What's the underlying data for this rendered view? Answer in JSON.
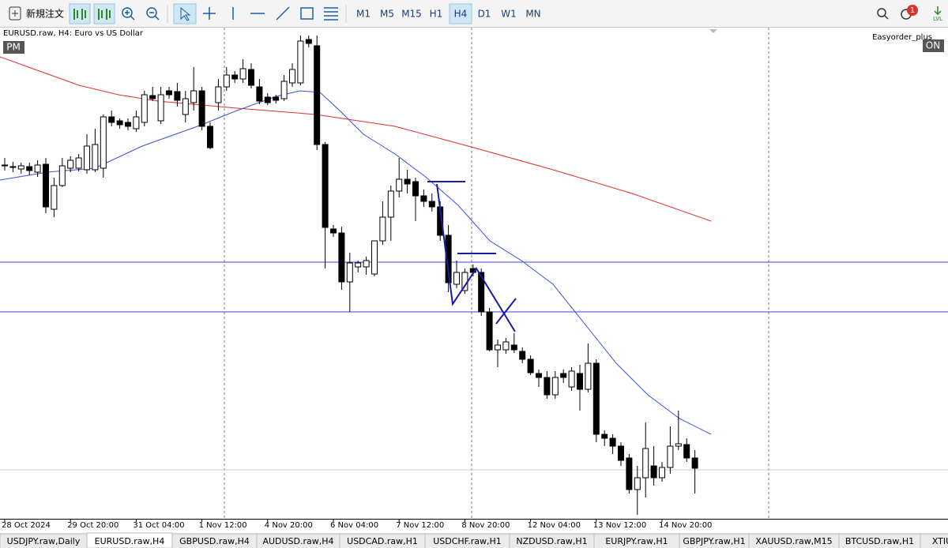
{
  "toolbar": {
    "new_order": "新規注文",
    "timeframes": [
      "M1",
      "M5",
      "M15",
      "H1",
      "H4",
      "D1",
      "W1",
      "MN"
    ],
    "active_timeframe": "H4",
    "notification_count": "1",
    "level_icon": "LVL"
  },
  "chart_data": {
    "type": "candlestick",
    "title": "EURUSD.raw, H4:  Euro vs US Dollar",
    "session_label": "PM",
    "expert_name": "Easyorder_plus",
    "expert_state": "ON",
    "categories": [
      "28 Oct 2024",
      null,
      null,
      null,
      null,
      null,
      null,
      null,
      "29 Oct 20:00",
      null,
      null,
      null,
      null,
      null,
      null,
      null,
      "31 Oct 04:00",
      null,
      null,
      null,
      null,
      null,
      null,
      null,
      "1 Nov 12:00",
      null,
      null,
      null,
      null,
      null,
      null,
      null,
      "4 Nov 20:00",
      null,
      null,
      null,
      null,
      null,
      null,
      null,
      "6 Nov 04:00",
      null,
      null,
      null,
      null,
      null,
      null,
      null,
      "7 Nov 12:00",
      null,
      null,
      null,
      null,
      null,
      null,
      null,
      "8 Nov 20:00",
      null,
      null,
      null,
      null,
      null,
      null,
      null,
      "12 Nov 04:00",
      null,
      null,
      null,
      null,
      null,
      null,
      null,
      "13 Nov 12:00",
      null,
      null,
      null,
      null,
      null,
      null,
      null,
      "14 Nov 20:00",
      null,
      null,
      null,
      null
    ],
    "open": [
      1.08215,
      1.08201,
      1.08187,
      1.08208,
      1.08159,
      1.08229,
      1.0783,
      1.0804,
      1.08194,
      1.08194,
      1.0818,
      1.0818,
      1.08194,
      1.08649,
      1.08614,
      1.086,
      1.08544,
      1.086,
      1.08838,
      1.08614,
      1.0888,
      1.08873,
      1.0867,
      1.08775,
      1.0888,
      1.08565,
      1.08775,
      1.08915,
      1.0902,
      1.08985,
      1.09069,
      1.08915,
      1.08824,
      1.08824,
      1.0881,
      1.0895,
      1.0895,
      1.09335,
      1.09279,
      1.08404,
      1.07655,
      1.0762,
      1.07186,
      1.07319,
      1.07319,
      1.07256,
      1.0755,
      1.0776,
      1.07991,
      1.08096,
      1.08075,
      1.07949,
      1.079,
      1.07851,
      1.07599,
      1.07165,
      1.07109,
      1.07305,
      1.0727,
      1.0692,
      1.06584,
      1.06584,
      1.06626,
      1.0657,
      1.065,
      1.06374,
      1.06339,
      1.06185,
      1.06374,
      1.06255,
      1.06374,
      1.06234,
      1.06465,
      1.05835,
      1.058,
      1.0573,
      1.05625,
      1.05345,
      1.0545,
      1.05555,
      1.0545,
      1.05541,
      1.0573,
      1.05744,
      1.05625
    ],
    "high": [
      1.08285,
      1.0825,
      1.08243,
      1.08243,
      1.08264,
      1.08285,
      1.0811,
      1.08285,
      1.08299,
      1.0832,
      1.08495,
      1.08544,
      1.0867,
      1.08705,
      1.08635,
      1.08635,
      1.08705,
      1.0888,
      1.08915,
      1.08915,
      1.08915,
      1.0895,
      1.0888,
      1.0909,
      1.08915,
      1.086,
      1.08985,
      1.0909,
      1.09055,
      1.0916,
      1.09125,
      1.08985,
      1.08859,
      1.08845,
      1.0902,
      1.09125,
      1.0937,
      1.0937,
      1.0937,
      1.08425,
      1.0769,
      1.07676,
      1.07445,
      1.07375,
      1.0741,
      1.0755,
      1.079,
      1.0804,
      1.08285,
      1.0818,
      1.0811,
      1.08005,
      1.0797,
      1.079,
      1.0769,
      1.07375,
      1.07305,
      1.0734,
      1.07305,
      1.06955,
      1.06675,
      1.06689,
      1.06731,
      1.06605,
      1.06535,
      1.06409,
      1.06395,
      1.06395,
      1.06409,
      1.0643,
      1.06451,
      1.0664,
      1.065,
      1.0587,
      1.05835,
      1.05765,
      1.0566,
      1.05555,
      1.0594,
      1.0573,
      1.0559,
      1.05905,
      1.06045,
      1.058,
      1.05695
    ],
    "low": [
      1.08173,
      1.08159,
      1.08145,
      1.08131,
      1.08117,
      1.07795,
      1.0776,
      1.08026,
      1.08159,
      1.08166,
      1.08145,
      1.08159,
      1.0811,
      1.08565,
      1.08544,
      1.0853,
      1.08516,
      1.08565,
      1.08789,
      1.08586,
      1.0881,
      1.0874,
      1.086,
      1.08705,
      1.0853,
      1.08362,
      1.08705,
      1.0888,
      1.0895,
      1.0895,
      1.08901,
      1.08761,
      1.08754,
      1.08768,
      1.08789,
      1.08915,
      1.08929,
      1.09265,
      1.08355,
      1.07305,
      1.07585,
      1.07116,
      1.0692,
      1.0727,
      1.07249,
      1.07235,
      1.07515,
      1.0755,
      1.07935,
      1.0797,
      1.07725,
      1.07851,
      1.07809,
      1.0755,
      1.07095,
      1.0713,
      1.07081,
      1.07235,
      1.06885,
      1.0657,
      1.0643,
      1.06549,
      1.06556,
      1.06465,
      1.0636,
      1.06255,
      1.0615,
      1.0615,
      1.0629,
      1.0622,
      1.06045,
      1.06206,
      1.05765,
      1.0573,
      1.0566,
      1.05555,
      1.0531,
      1.05121,
      1.05275,
      1.0538,
      1.05415,
      1.05485,
      1.05695,
      1.0559,
      1.0531
    ],
    "close": [
      1.08222,
      1.08208,
      1.08215,
      1.08173,
      1.08222,
      1.07851,
      1.0804,
      1.08215,
      1.08264,
      1.08285,
      1.0839,
      1.08404,
      1.08649,
      1.086,
      1.08579,
      1.08565,
      1.08649,
      1.08845,
      1.0881,
      1.08845,
      1.08845,
      1.08796,
      1.0881,
      1.0888,
      1.08565,
      1.08376,
      1.08915,
      1.0902,
      1.08985,
      1.09076,
      1.08929,
      1.08789,
      1.08775,
      1.08796,
      1.08964,
      1.09069,
      1.09321,
      1.093,
      1.08404,
      1.07669,
      1.0762,
      1.07186,
      1.07354,
      1.07354,
      1.07375,
      1.0755,
      1.0776,
      1.07991,
      1.08096,
      1.08054,
      1.07949,
      1.079,
      1.07851,
      1.07599,
      1.07179,
      1.0727,
      1.0727,
      1.0727,
      1.0692,
      1.06584,
      1.06626,
      1.06654,
      1.06584,
      1.065,
      1.06381,
      1.06339,
      1.06185,
      1.06339,
      1.06339,
      1.06395,
      1.06234,
      1.06465,
      1.05835,
      1.058,
      1.0573,
      1.05604,
      1.05345,
      1.0545,
      1.05709,
      1.0545,
      1.05541,
      1.0573,
      1.05751,
      1.05625,
      1.05534
    ],
    "ylim": [
      1.05086,
      1.0944
    ],
    "up_color": "#ffffff",
    "down_color": "#000000",
    "grid": false
  },
  "tabs": [
    "USDJPY.raw,Daily",
    "EURUSD.raw,H4",
    "GBPUSD.raw,H4",
    "AUDUSD.raw,H4",
    "USDCAD.raw,H1",
    "USDCHF.raw,H1",
    "NZDUSD.raw,H1",
    "EURJPY.raw,H1",
    "GBPJPY.raw,H1",
    "XAUUSD.raw,M15",
    "BTCUSD.raw,H1",
    "XTIU"
  ],
  "active_tab": "EURUSD.raw,H4"
}
